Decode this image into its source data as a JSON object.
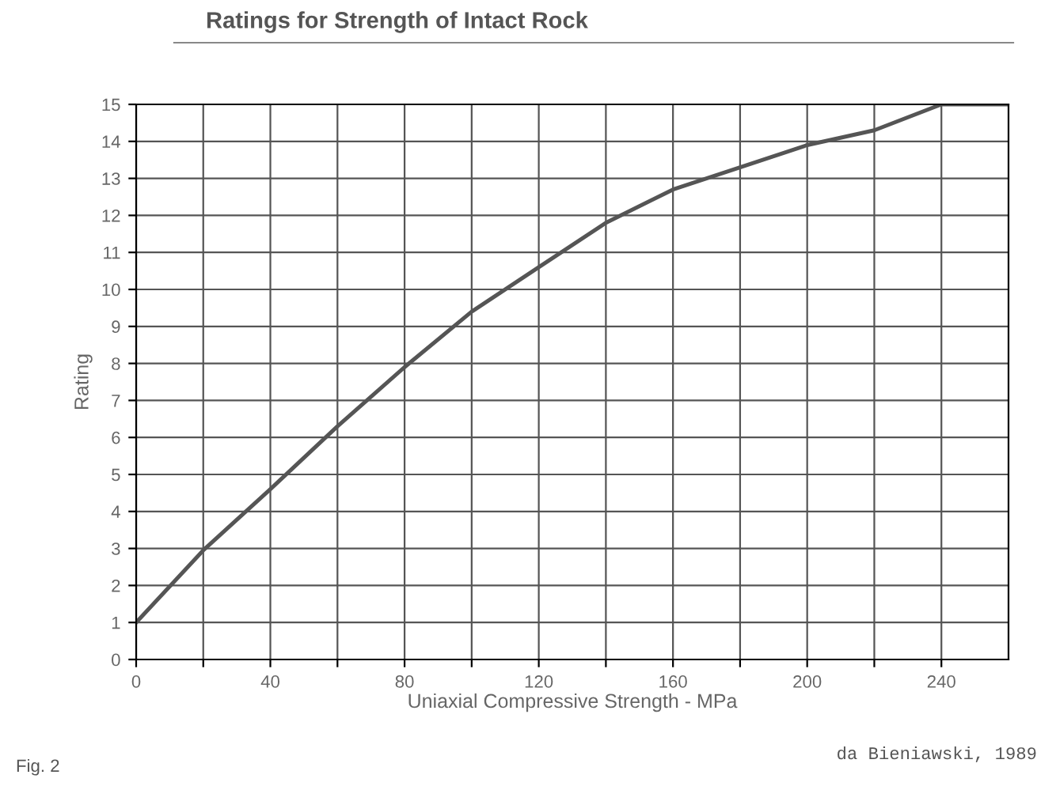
{
  "chart_data": {
    "type": "line",
    "title": "Ratings for Strength of Intact Rock",
    "xlabel": "Uniaxial Compressive Strength - MPa",
    "ylabel": "Rating",
    "x": [
      0,
      20,
      40,
      60,
      80,
      100,
      120,
      140,
      160,
      180,
      200,
      220,
      240,
      260
    ],
    "series": [
      {
        "color": "#555555",
        "values": [
          1,
          2.95,
          4.6,
          6.3,
          7.9,
          9.4,
          10.6,
          11.8,
          12.7,
          13.3,
          13.9,
          14.3,
          15,
          15
        ]
      }
    ],
    "xlim": [
      0,
      260
    ],
    "ylim": [
      0,
      15
    ],
    "xticks": [
      0,
      {
        "value": 20,
        "label": null
      },
      40,
      {
        "value": 60,
        "label": null
      },
      80,
      {
        "value": 100,
        "label": null
      },
      120,
      {
        "value": 140,
        "label": null
      },
      160,
      {
        "value": 180,
        "label": null
      },
      200,
      {
        "value": 220,
        "label": null
      },
      240
    ],
    "yticks": [
      0,
      1,
      2,
      3,
      4,
      5,
      6,
      7,
      8,
      9,
      10,
      11,
      12,
      13,
      14,
      15
    ],
    "grid": true,
    "marker": "none",
    "line_style": "solid",
    "annotations": [
      "Fig. 2",
      "da Bieniawski, 1989"
    ]
  }
}
